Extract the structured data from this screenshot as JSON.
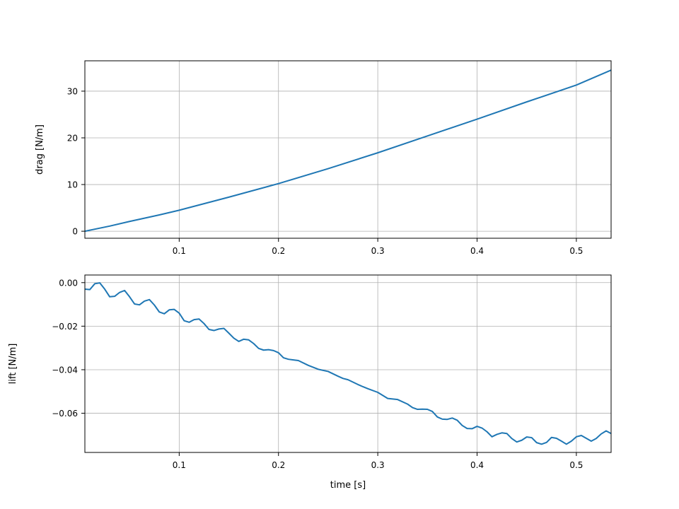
{
  "chart_data": [
    {
      "type": "line",
      "title": "",
      "xlabel": "",
      "ylabel": "drag [N/m]",
      "xlim": [
        0.005,
        0.535
      ],
      "ylim": [
        -1.5,
        36.5
      ],
      "xticks": [
        0.1,
        0.2,
        0.3,
        0.4,
        0.5
      ],
      "xtick_labels": [
        "0.1",
        "0.2",
        "0.3",
        "0.4",
        "0.5"
      ],
      "yticks": [
        0,
        10,
        20,
        30
      ],
      "ytick_labels": [
        "0",
        "10",
        "20",
        "30"
      ],
      "grid": true,
      "color": "#1f77b4",
      "x": [
        0.005,
        0.03,
        0.05,
        0.08,
        0.1,
        0.15,
        0.2,
        0.25,
        0.3,
        0.35,
        0.4,
        0.45,
        0.5,
        0.535
      ],
      "y": [
        0.0,
        1.1,
        2.1,
        3.5,
        4.5,
        7.3,
        10.2,
        13.4,
        16.8,
        20.4,
        24.0,
        27.7,
        31.3,
        34.5
      ]
    },
    {
      "type": "line",
      "title": "",
      "xlabel": "time [s]",
      "ylabel": "lift [N/m]",
      "xlim": [
        0.005,
        0.535
      ],
      "ylim": [
        -0.078,
        0.0035
      ],
      "xticks": [
        0.1,
        0.2,
        0.3,
        0.4,
        0.5
      ],
      "xtick_labels": [
        "0.1",
        "0.2",
        "0.3",
        "0.4",
        "0.5"
      ],
      "yticks": [
        0.0,
        -0.02,
        -0.04,
        -0.06
      ],
      "ytick_labels": [
        "0.00",
        "−0.02",
        "−0.04",
        "−0.06"
      ],
      "grid": true,
      "color": "#1f77b4",
      "x": [
        0.005,
        0.01,
        0.015,
        0.02,
        0.025,
        0.03,
        0.035,
        0.04,
        0.045,
        0.05,
        0.055,
        0.06,
        0.065,
        0.07,
        0.075,
        0.08,
        0.085,
        0.09,
        0.095,
        0.1,
        0.105,
        0.11,
        0.115,
        0.12,
        0.125,
        0.13,
        0.135,
        0.14,
        0.145,
        0.15,
        0.155,
        0.16,
        0.165,
        0.17,
        0.175,
        0.18,
        0.185,
        0.19,
        0.195,
        0.2,
        0.205,
        0.21,
        0.215,
        0.22,
        0.23,
        0.24,
        0.25,
        0.26,
        0.265,
        0.27,
        0.28,
        0.285,
        0.29,
        0.3,
        0.31,
        0.32,
        0.33,
        0.335,
        0.34,
        0.345,
        0.35,
        0.355,
        0.36,
        0.365,
        0.37,
        0.375,
        0.38,
        0.385,
        0.39,
        0.395,
        0.4,
        0.405,
        0.41,
        0.415,
        0.42,
        0.425,
        0.43,
        0.435,
        0.44,
        0.445,
        0.45,
        0.455,
        0.46,
        0.465,
        0.47,
        0.475,
        0.48,
        0.485,
        0.49,
        0.495,
        0.5,
        0.505,
        0.51,
        0.515,
        0.52,
        0.525,
        0.53,
        0.535
      ],
      "y": [
        -0.003,
        -0.0032,
        -0.0005,
        -0.0001,
        -0.003,
        -0.0065,
        -0.0063,
        -0.0045,
        -0.0036,
        -0.0065,
        -0.0098,
        -0.0102,
        -0.0085,
        -0.0078,
        -0.0103,
        -0.0135,
        -0.0143,
        -0.0125,
        -0.0123,
        -0.014,
        -0.0175,
        -0.0182,
        -0.017,
        -0.0167,
        -0.0188,
        -0.0215,
        -0.022,
        -0.0213,
        -0.021,
        -0.0232,
        -0.0255,
        -0.027,
        -0.026,
        -0.0263,
        -0.028,
        -0.0302,
        -0.031,
        -0.0308,
        -0.0312,
        -0.0322,
        -0.0345,
        -0.0352,
        -0.0355,
        -0.0358,
        -0.038,
        -0.0398,
        -0.0408,
        -0.043,
        -0.044,
        -0.0446,
        -0.0468,
        -0.0478,
        -0.0487,
        -0.0504,
        -0.0532,
        -0.0537,
        -0.0558,
        -0.0574,
        -0.0582,
        -0.0581,
        -0.0582,
        -0.0592,
        -0.0617,
        -0.0627,
        -0.0628,
        -0.0622,
        -0.0632,
        -0.0656,
        -0.067,
        -0.0671,
        -0.066,
        -0.0668,
        -0.0685,
        -0.0708,
        -0.0697,
        -0.069,
        -0.0693,
        -0.0716,
        -0.0732,
        -0.0724,
        -0.0709,
        -0.0712,
        -0.0735,
        -0.0742,
        -0.0734,
        -0.0711,
        -0.0715,
        -0.0728,
        -0.0742,
        -0.0728,
        -0.0708,
        -0.0702,
        -0.0715,
        -0.0728,
        -0.0716,
        -0.0695,
        -0.0681,
        -0.0693
      ]
    }
  ]
}
